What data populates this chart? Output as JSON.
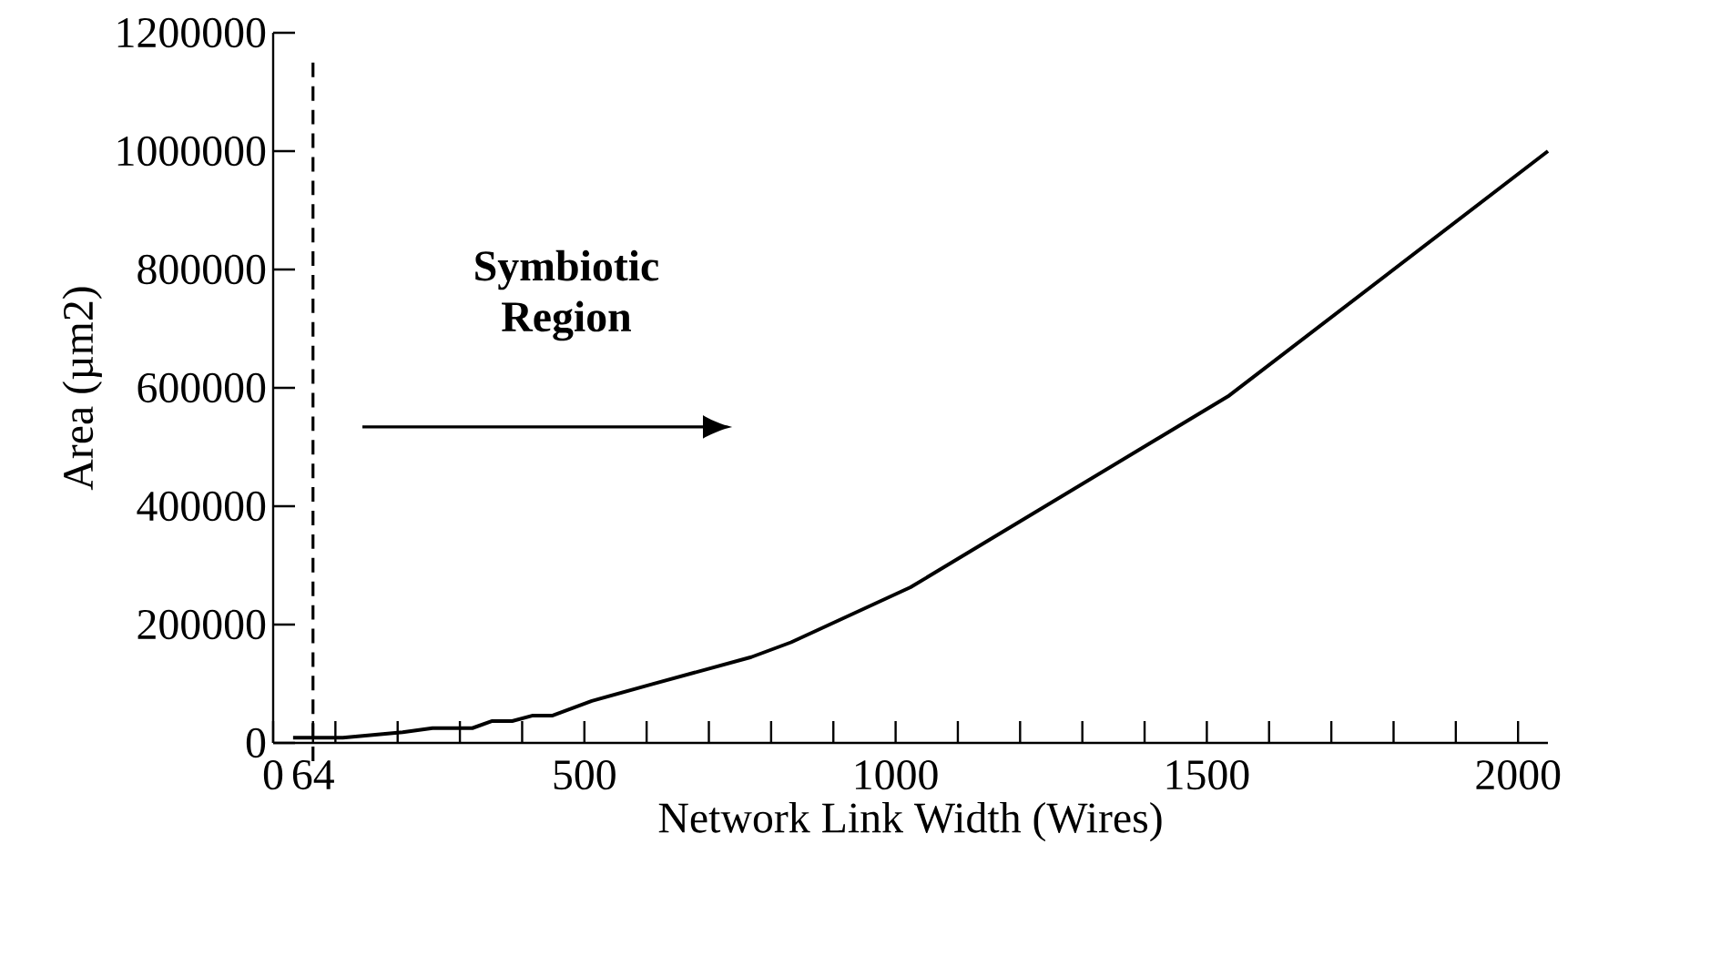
{
  "chart_data": {
    "type": "line",
    "xlabel": "Network Link Width (Wires)",
    "ylabel": "Area  (µm2)",
    "x": [
      32,
      112,
      208,
      256,
      320,
      352,
      384,
      416,
      448,
      512,
      608,
      768,
      832,
      1024,
      1536,
      2048
    ],
    "series": [
      {
        "color": "#000000",
        "values": [
          9000,
          9000,
          18000,
          25000,
          25000,
          37000,
          37000,
          46000,
          46000,
          71000,
          99000,
          145000,
          170000,
          263000,
          587000,
          1000000
        ]
      }
    ],
    "xlim": [
      0,
      2048
    ],
    "xticks": [
      0,
      64,
      {
        "value": 100,
        "label": null
      },
      {
        "value": 200,
        "label": null
      },
      {
        "value": 300,
        "label": null
      },
      {
        "value": 400,
        "label": null
      },
      500,
      {
        "value": 600,
        "label": null
      },
      {
        "value": 700,
        "label": null
      },
      {
        "value": 800,
        "label": null
      },
      {
        "value": 900,
        "label": null
      },
      1000,
      {
        "value": 1100,
        "label": null
      },
      {
        "value": 1200,
        "label": null
      },
      {
        "value": 1300,
        "label": null
      },
      {
        "value": 1400,
        "label": null
      },
      1500,
      {
        "value": 1600,
        "label": null
      },
      {
        "value": 1700,
        "label": null
      },
      {
        "value": 1800,
        "label": null
      },
      {
        "value": 1900,
        "label": null
      },
      2000
    ],
    "ylim": [
      0,
      1200000
    ],
    "yticks": [
      0,
      200000,
      400000,
      600000,
      800000,
      1000000,
      1200000
    ],
    "ref_lines": [
      {
        "axis": "x",
        "value": 64,
        "line_style": "dashed",
        "color": "#000000"
      }
    ],
    "annotations": [
      "**Symbiotic Region**"
    ],
    "grid": false,
    "marker": "none",
    "line_style": "solid"
  }
}
